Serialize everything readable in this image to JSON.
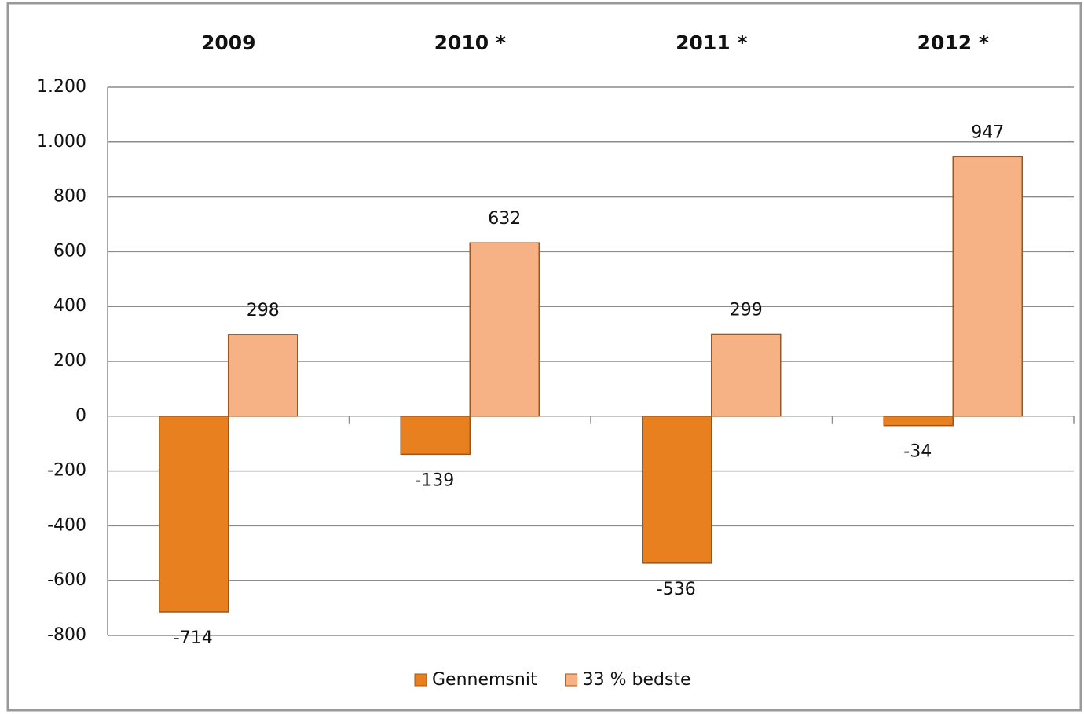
{
  "chart_data": {
    "type": "bar",
    "categories": [
      "2009",
      "2010 *",
      "2011 *",
      "2012 *"
    ],
    "series": [
      {
        "name": "Gennemsnit",
        "color": "#e8801f",
        "values": [
          -714,
          -139,
          -536,
          -34
        ]
      },
      {
        "name": "33 % bedste",
        "color": "#f6b185",
        "values": [
          298,
          632,
          299,
          947
        ]
      }
    ],
    "ylim": [
      -800,
      1200
    ],
    "yticks": [
      -800,
      -600,
      -400,
      -200,
      0,
      200,
      400,
      600,
      800,
      {
        "value": 1000,
        "label": "1.000"
      },
      {
        "value": 1200,
        "label": "1.200"
      }
    ],
    "grid": true,
    "legend": "bottom"
  }
}
